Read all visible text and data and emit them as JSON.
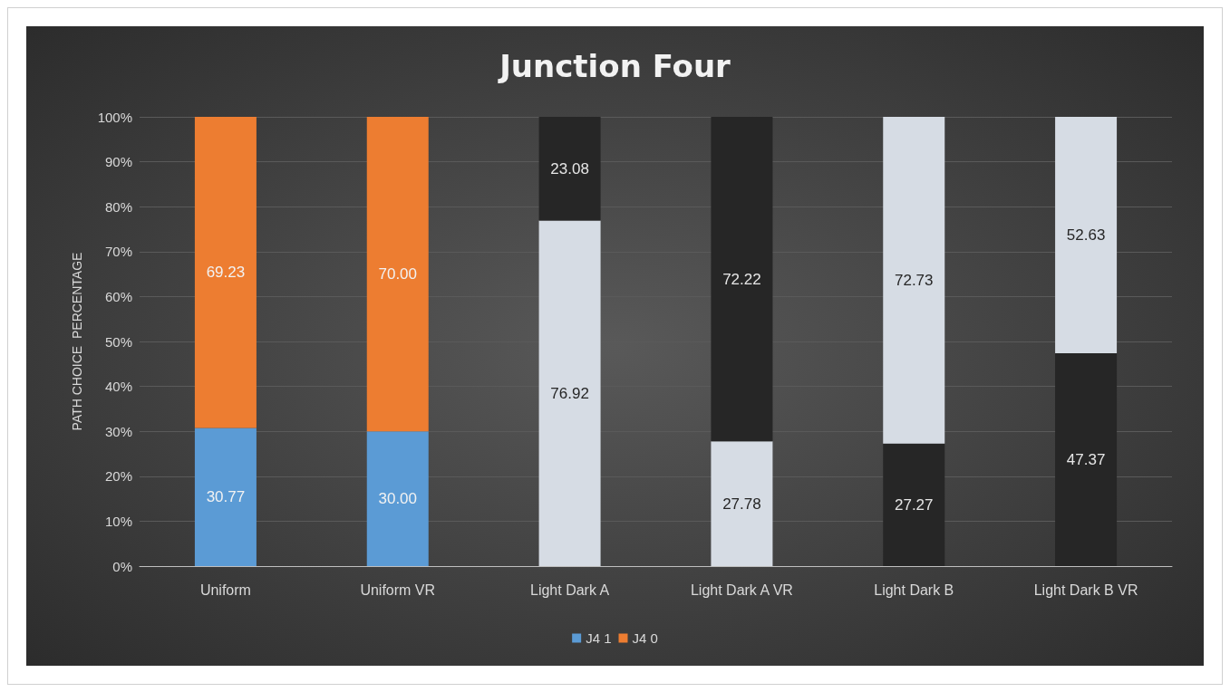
{
  "chart_data": {
    "type": "bar",
    "title": "Junction Four",
    "ylabel": "PATH CHOICE  PERCENTAGE",
    "categories": [
      "Uniform",
      "Uniform VR",
      "Light Dark A",
      "Light Dark A VR",
      "Light Dark B",
      "Light Dark B VR"
    ],
    "series": [
      {
        "name": "J4 1",
        "color": "#5b9bd5",
        "colors": [
          "#5b9bd5",
          "#5b9bd5",
          "#d6dce4",
          "#d6dce4",
          "#262626",
          "#262626"
        ],
        "values": [
          30.77,
          30.0,
          76.92,
          27.78,
          27.27,
          47.37
        ],
        "value_labels": [
          "30.77",
          "30.00",
          "76.92",
          "27.78",
          "27.27",
          "47.37"
        ]
      },
      {
        "name": "J4 0",
        "color": "#ed7d31",
        "colors": [
          "#ed7d31",
          "#ed7d31",
          "#262626",
          "#262626",
          "#d6dce4",
          "#d6dce4"
        ],
        "values": [
          69.23,
          70.0,
          23.08,
          72.22,
          72.73,
          52.63
        ],
        "value_labels": [
          "69.23",
          "70.00",
          "23.08",
          "72.22",
          "72.73",
          "52.63"
        ]
      }
    ],
    "stacked": true,
    "grid": "y",
    "legend": "bottom",
    "ylim": [
      0,
      100
    ],
    "yticks": [
      {
        "value": 0,
        "label": "0%"
      },
      {
        "value": 10,
        "label": "10%"
      },
      {
        "value": 20,
        "label": "20%"
      },
      {
        "value": 30,
        "label": "30%"
      },
      {
        "value": 40,
        "label": "40%"
      },
      {
        "value": 50,
        "label": "50%"
      },
      {
        "value": 60,
        "label": "60%"
      },
      {
        "value": 70,
        "label": "70%"
      },
      {
        "value": 80,
        "label": "80%"
      },
      {
        "value": 90,
        "label": "90%"
      },
      {
        "value": 100,
        "label": "100%"
      }
    ]
  }
}
